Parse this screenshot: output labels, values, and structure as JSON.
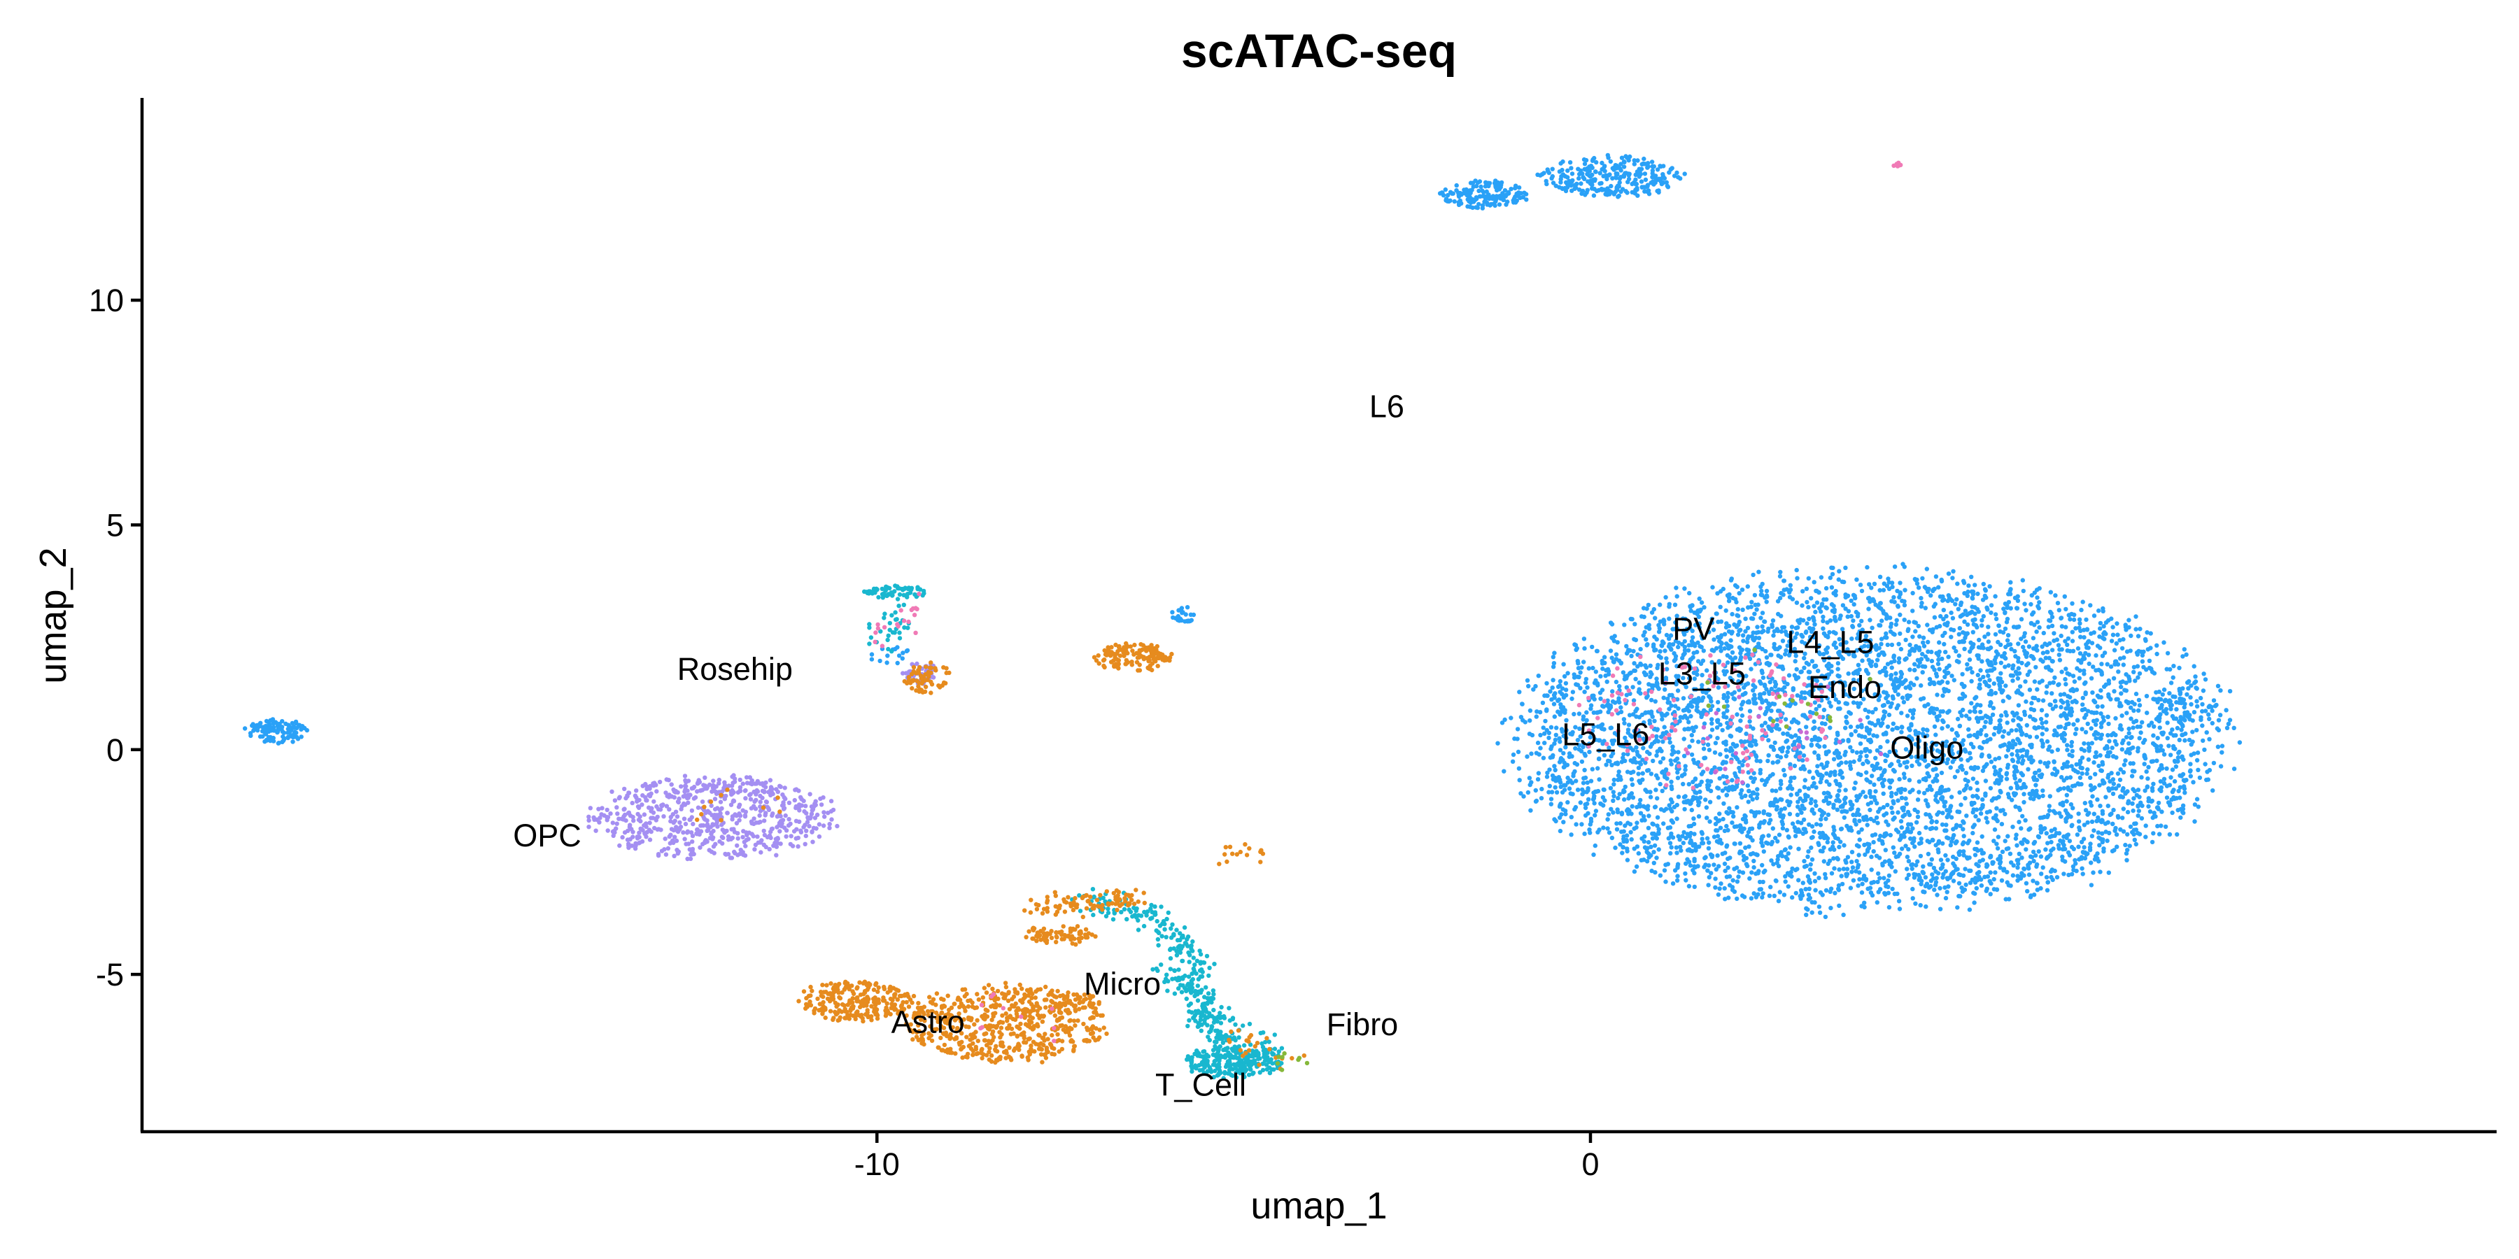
{
  "chart_data": {
    "type": "scatter",
    "title": "scATAC-seq",
    "xlabel": "umap_1",
    "ylabel": "umap_2",
    "xlim": [
      -20.3,
      12.7
    ],
    "ylim": [
      -8.5,
      14.5
    ],
    "x_ticks": [
      -10,
      0
    ],
    "y_ticks": [
      -5,
      0,
      5,
      10
    ],
    "grid": false,
    "legend": "none",
    "colors": {
      "blue": "#2aa1f7",
      "orange": "#e68b1e",
      "purple": "#a48ff2",
      "cyan": "#19b7cf",
      "pink": "#f07ab6",
      "green": "#85b83a",
      "violet": "#c86ad4"
    },
    "clusters": [
      {
        "color": "blue",
        "shape": "ellipse",
        "cx": 3.9,
        "cy": 0.2,
        "rx": 4.9,
        "ry": 3.7,
        "n": 5200
      },
      {
        "color": "blue",
        "shape": "ellipse",
        "cx": -1.5,
        "cy": 12.35,
        "rx": 0.6,
        "ry": 0.32,
        "n": 150
      },
      {
        "color": "blue",
        "shape": "ellipse",
        "cx": 0.3,
        "cy": 12.75,
        "rx": 1.0,
        "ry": 0.45,
        "n": 260
      },
      {
        "color": "blue",
        "shape": "ellipse",
        "cx": -18.4,
        "cy": 0.4,
        "rx": 0.45,
        "ry": 0.28,
        "n": 110
      },
      {
        "color": "blue",
        "shape": "ellipse",
        "cx": -5.7,
        "cy": 3.0,
        "rx": 0.18,
        "ry": 0.18,
        "n": 25
      },
      {
        "color": "purple",
        "shape": "ellipse",
        "cx": -12.3,
        "cy": -1.5,
        "rx": 1.7,
        "ry": 0.9,
        "n": 650
      },
      {
        "color": "orange",
        "shape": "ellipse",
        "cx": -10.3,
        "cy": -5.6,
        "rx": 0.8,
        "ry": 0.45,
        "n": 250
      },
      {
        "color": "orange",
        "shape": "ellipse",
        "cx": -8.2,
        "cy": -6.1,
        "rx": 1.4,
        "ry": 0.85,
        "n": 560
      },
      {
        "color": "orange",
        "shape": "ellipse",
        "cx": -7.4,
        "cy": -4.15,
        "rx": 0.45,
        "ry": 0.2,
        "n": 40
      },
      {
        "color": "orange",
        "shape": "ellipse",
        "cx": -6.4,
        "cy": 2.05,
        "rx": 0.55,
        "ry": 0.3,
        "n": 130
      },
      {
        "color": "orange",
        "shape": "ellipse",
        "cx": -7.5,
        "cy": -4.1,
        "rx": 0.5,
        "ry": 0.2,
        "n": 35
      },
      {
        "color": "cyan",
        "shape": "ellipse",
        "cx": -9.7,
        "cy": 3.5,
        "rx": 0.45,
        "ry": 0.15,
        "n": 60
      },
      {
        "color": "cyan",
        "shape": "ellipse",
        "cx": -5.0,
        "cy": -6.95,
        "rx": 0.7,
        "ry": 0.35,
        "n": 220
      },
      {
        "color": "purple",
        "shape": "ellipse",
        "cx": -9.4,
        "cy": 1.7,
        "rx": 0.25,
        "ry": 0.25,
        "n": 45
      },
      {
        "color": "orange",
        "shape": "ellipse",
        "cx": -7.2,
        "cy": -5.6,
        "rx": 0.4,
        "ry": 0.2,
        "n": 40
      },
      {
        "color": "blue",
        "shape": "ellipse",
        "cx": -9.8,
        "cy": 2.1,
        "rx": 0.3,
        "ry": 0.2,
        "n": 15
      }
    ],
    "paths": [
      {
        "color": "cyan",
        "n": 280,
        "points": [
          [
            -7.0,
            -3.3
          ],
          [
            -6.2,
            -3.7
          ],
          [
            -5.6,
            -4.5
          ],
          [
            -5.5,
            -5.4
          ],
          [
            -5.3,
            -6.3
          ],
          [
            -4.8,
            -7.0
          ]
        ]
      },
      {
        "color": "orange",
        "n": 90,
        "points": [
          [
            -7.7,
            -3.5
          ],
          [
            -7.0,
            -3.4
          ],
          [
            -6.3,
            -3.3
          ]
        ]
      },
      {
        "color": "cyan",
        "n": 80,
        "points": [
          [
            -6.0,
            -4.8
          ],
          [
            -5.3,
            -5.9
          ],
          [
            -4.4,
            -6.7
          ]
        ]
      },
      {
        "color": "cyan",
        "n": 30,
        "points": [
          [
            -9.9,
            2.4
          ],
          [
            -9.7,
            3.2
          ]
        ]
      },
      {
        "color": "pink",
        "n": 18,
        "points": [
          [
            -10.0,
            2.4
          ],
          [
            -9.4,
            3.3
          ]
        ]
      },
      {
        "color": "orange",
        "n": 15,
        "points": [
          [
            -5.1,
            -2.6
          ],
          [
            -4.8,
            -2.2
          ]
        ]
      },
      {
        "color": "orange",
        "n": 22,
        "points": [
          [
            -5.0,
            -6.3
          ],
          [
            -4.2,
            -7.0
          ]
        ]
      },
      {
        "color": "green",
        "n": 8,
        "points": [
          [
            -4.4,
            -7.0
          ],
          [
            -4.0,
            -6.8
          ]
        ]
      }
    ],
    "scatter_colors": [
      {
        "color": "pink",
        "n": 120,
        "cx": 1.6,
        "cy": 0.7,
        "rx": 1.8,
        "ry": 1.6
      },
      {
        "color": "orange",
        "n": 60,
        "cx": -9.3,
        "cy": 1.6,
        "rx": 0.35,
        "ry": 0.35
      },
      {
        "color": "violet",
        "n": 20,
        "cx": 2.8,
        "cy": 0.3,
        "rx": 1.6,
        "ry": 1.2
      },
      {
        "color": "green",
        "n": 14,
        "cx": 2.6,
        "cy": 1.4,
        "rx": 1.4,
        "ry": 1.0
      },
      {
        "color": "pink",
        "n": 6,
        "cx": 4.3,
        "cy": 13.0,
        "rx": 0.06,
        "ry": 0.06
      },
      {
        "color": "orange",
        "n": 10,
        "cx": -12.4,
        "cy": -1.2,
        "rx": 1.2,
        "ry": 0.5
      },
      {
        "color": "pink",
        "n": 10,
        "cx": -8.0,
        "cy": -6.0,
        "rx": 1.0,
        "ry": 0.6
      }
    ],
    "labels": [
      {
        "text": "L6",
        "x": -3.1,
        "y": 7.4
      },
      {
        "text": "PV",
        "x": 1.15,
        "y": 2.45
      },
      {
        "text": "L4_L5",
        "x": 2.75,
        "y": 2.15
      },
      {
        "text": "L3_L5",
        "x": 0.95,
        "y": 1.45
      },
      {
        "text": "Endo",
        "x": 3.05,
        "y": 1.15
      },
      {
        "text": "Rosehip",
        "x": -12.8,
        "y": 1.55
      },
      {
        "text": "L5_L6",
        "x": -0.4,
        "y": 0.1
      },
      {
        "text": "Oligo",
        "x": 4.2,
        "y": -0.2
      },
      {
        "text": "OPC",
        "x": -15.1,
        "y": -2.15
      },
      {
        "text": "Micro",
        "x": -7.1,
        "y": -5.45
      },
      {
        "text": "Fibro",
        "x": -3.7,
        "y": -6.35
      },
      {
        "text": "Astro",
        "x": -9.8,
        "y": -6.3
      },
      {
        "text": "T_Cell",
        "x": -6.1,
        "y": -7.7
      }
    ]
  }
}
